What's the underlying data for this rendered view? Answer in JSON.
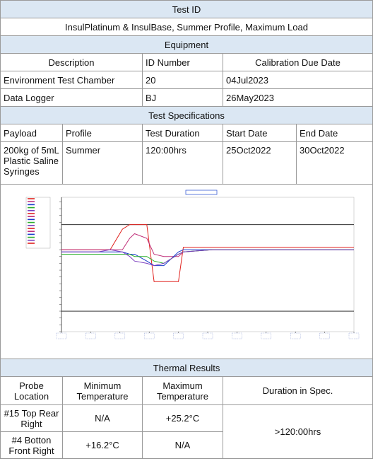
{
  "test_id": {
    "heading": "Test ID",
    "value": "InsulPlatinum & InsulBase, Summer Profile, Maximum Load"
  },
  "equipment": {
    "heading": "Equipment",
    "columns": [
      "Description",
      "ID Number",
      "Calibration Due Date"
    ],
    "rows": [
      [
        "Environment Test Chamber",
        "20",
        "04Jul2023"
      ],
      [
        "Data Logger",
        "BJ",
        "26May2023"
      ]
    ]
  },
  "test_specifications": {
    "heading": "Test Specifications",
    "columns": [
      "Payload",
      "Profile",
      "Test Duration",
      "Start Date",
      "End Date"
    ],
    "row": [
      "200kg of 5mL Plastic Saline Syringes",
      "Summer",
      "120:00hrs",
      "25Oct2022",
      "30Oct2022"
    ]
  },
  "chart_data": {
    "type": "line",
    "title": "",
    "xlabel": "",
    "ylabel": "",
    "ylim": [
      -12,
      47
    ],
    "x": [
      0,
      15,
      20,
      25,
      28,
      30,
      35,
      38,
      42,
      48,
      50,
      62,
      75,
      100,
      120
    ],
    "limit_lines": [
      35,
      -3
    ],
    "series": [
      {
        "values": [
          24,
          24,
          24,
          33,
          35,
          35,
          35,
          10,
          10,
          10,
          25,
          25,
          25,
          25,
          25
        ]
      },
      {
        "values": [
          24,
          24,
          24,
          24,
          29,
          31,
          29,
          22,
          21,
          21,
          23,
          24,
          24,
          24,
          24
        ]
      },
      {
        "values": [
          23,
          23,
          23,
          23,
          22,
          22,
          19,
          17,
          17,
          23,
          24,
          24,
          24,
          24,
          24
        ]
      },
      {
        "values": [
          22,
          22,
          22,
          22,
          22,
          21,
          21,
          19,
          18,
          22,
          23,
          24,
          24,
          24,
          24
        ]
      },
      {
        "values": [
          23,
          23,
          24,
          23,
          21,
          19,
          18,
          17,
          18,
          22,
          23,
          24,
          24,
          24,
          24
        ]
      }
    ],
    "colors": [
      "#e0201c",
      "#c0307a",
      "#1a3dcc",
      "#2bb02b",
      "#7b3fbf"
    ]
  },
  "thermal_results": {
    "heading": "Thermal Results",
    "columns": [
      "Probe Location",
      "Minimum Temperature",
      "Maximum Temperature",
      "Duration in Spec."
    ],
    "rows": [
      [
        "#15 Top Rear Right",
        "N/A",
        "+25.2°C"
      ],
      [
        "#4 Botton Front Right",
        "+16.2°C",
        "N/A"
      ]
    ],
    "duration": ">120:00hrs"
  }
}
